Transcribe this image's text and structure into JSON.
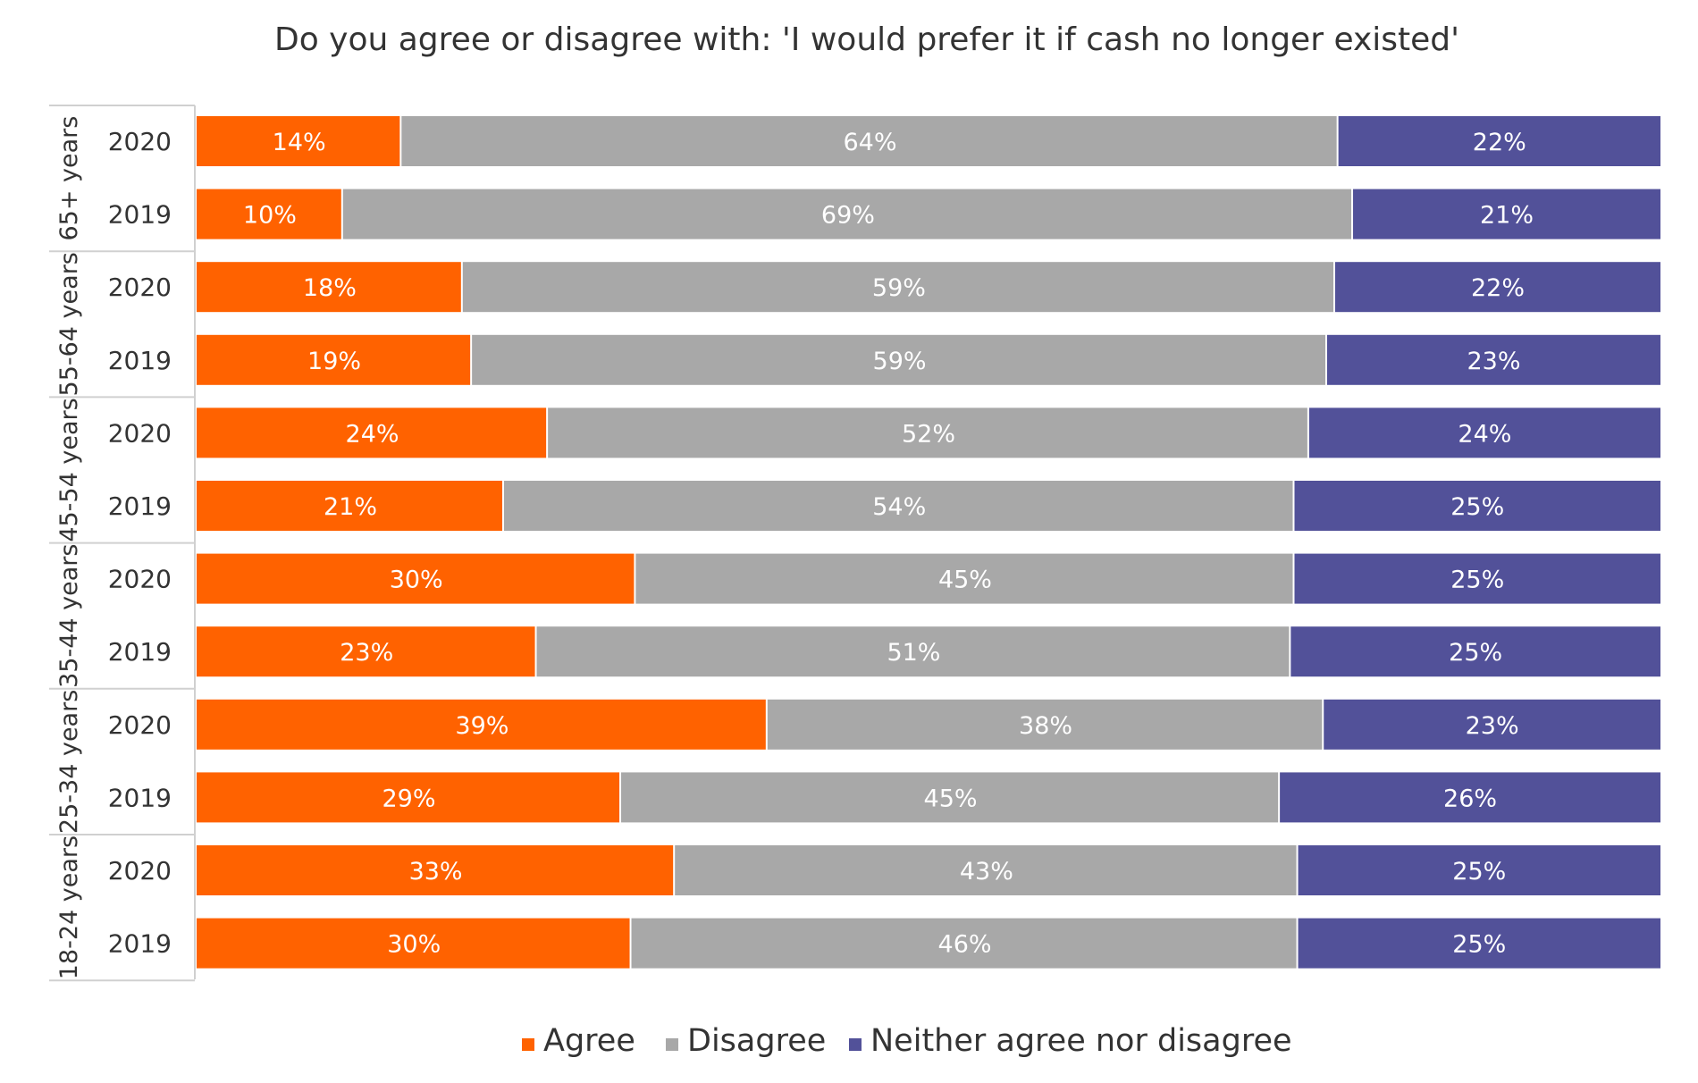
{
  "chart_data": {
    "type": "bar",
    "orientation": "horizontal",
    "stacked": true,
    "percent_scale": true,
    "title": "Do you agree or disagree with: 'I would prefer it if cash no longer existed'",
    "xlim": [
      0,
      100
    ],
    "grid": false,
    "legend_position": "bottom",
    "groups": [
      {
        "label": "65+ years",
        "years": [
          "2020",
          "2019"
        ]
      },
      {
        "label": "55-64 years",
        "years": [
          "2020",
          "2019"
        ]
      },
      {
        "label": "45-54 years",
        "years": [
          "2020",
          "2019"
        ]
      },
      {
        "label": "35-44 years",
        "years": [
          "2020",
          "2019"
        ]
      },
      {
        "label": "25-34 years",
        "years": [
          "2020",
          "2019"
        ]
      },
      {
        "label": "18-24 years",
        "years": [
          "2020",
          "2019"
        ]
      }
    ],
    "series": [
      {
        "name": "Agree",
        "color": "#ff6200",
        "values": [
          14,
          10,
          18,
          19,
          24,
          21,
          30,
          23,
          39,
          29,
          33,
          30
        ]
      },
      {
        "name": "Disagree",
        "color": "#a8a8a8",
        "values": [
          64,
          69,
          59,
          59,
          52,
          54,
          45,
          51,
          38,
          45,
          43,
          46
        ]
      },
      {
        "name": "Neither agree nor disagree",
        "color": "#525199",
        "values": [
          22,
          21,
          22,
          23,
          24,
          25,
          25,
          25,
          23,
          26,
          25,
          25
        ]
      }
    ],
    "value_suffix": "%"
  }
}
